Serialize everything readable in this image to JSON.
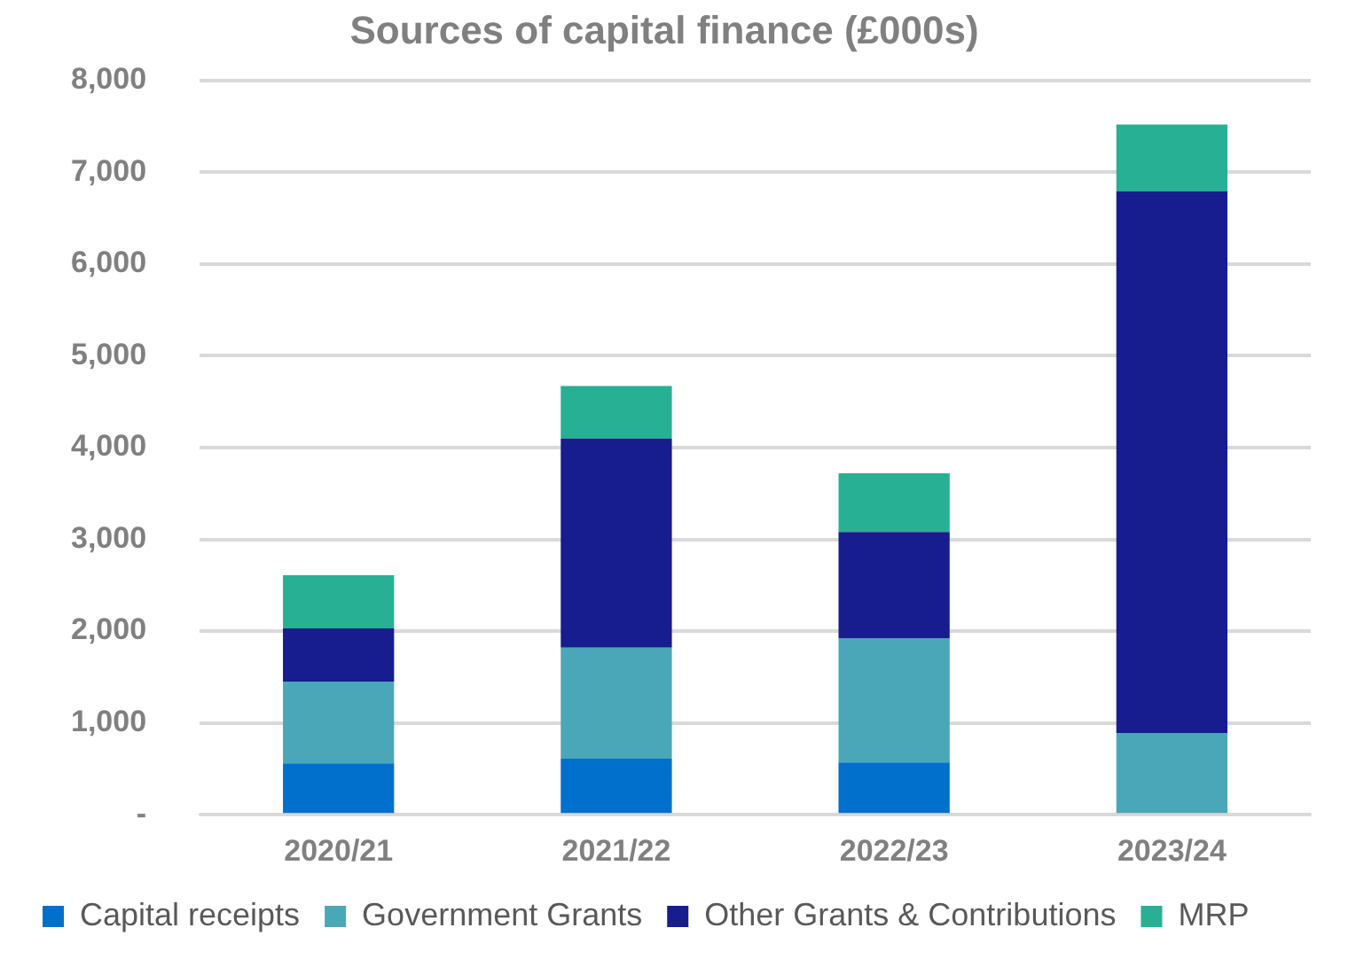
{
  "chart_data": {
    "type": "bar",
    "title": "Sources of capital finance (£000s)",
    "stacked": true,
    "categories": [
      "2020/21",
      "2021/22",
      "2022/23",
      "2023/24"
    ],
    "series": [
      {
        "name": "Capital receipts",
        "color": "#0070cc",
        "values": [
          560,
          610,
          570,
          0
        ]
      },
      {
        "name": "Government Grants",
        "color": "#4aa7b8",
        "values": [
          890,
          1210,
          1350,
          890
        ]
      },
      {
        "name": "Other Grants & Contributions",
        "color": "#171c8f",
        "values": [
          580,
          2280,
          1160,
          5900
        ]
      },
      {
        "name": "MRP",
        "color": "#27b093",
        "values": [
          580,
          570,
          640,
          730
        ]
      }
    ],
    "ylim": [
      0,
      8000
    ],
    "yticks": [
      {
        "value": 0,
        "label": "-"
      },
      {
        "value": 1000,
        "label": "1,000"
      },
      {
        "value": 2000,
        "label": "2,000"
      },
      {
        "value": 3000,
        "label": "3,000"
      },
      {
        "value": 4000,
        "label": "4,000"
      },
      {
        "value": 5000,
        "label": "5,000"
      },
      {
        "value": 6000,
        "label": "6,000"
      },
      {
        "value": 7000,
        "label": "7,000"
      },
      {
        "value": 8000,
        "label": "8,000"
      }
    ],
    "grid": "y",
    "legend": "bottom"
  }
}
